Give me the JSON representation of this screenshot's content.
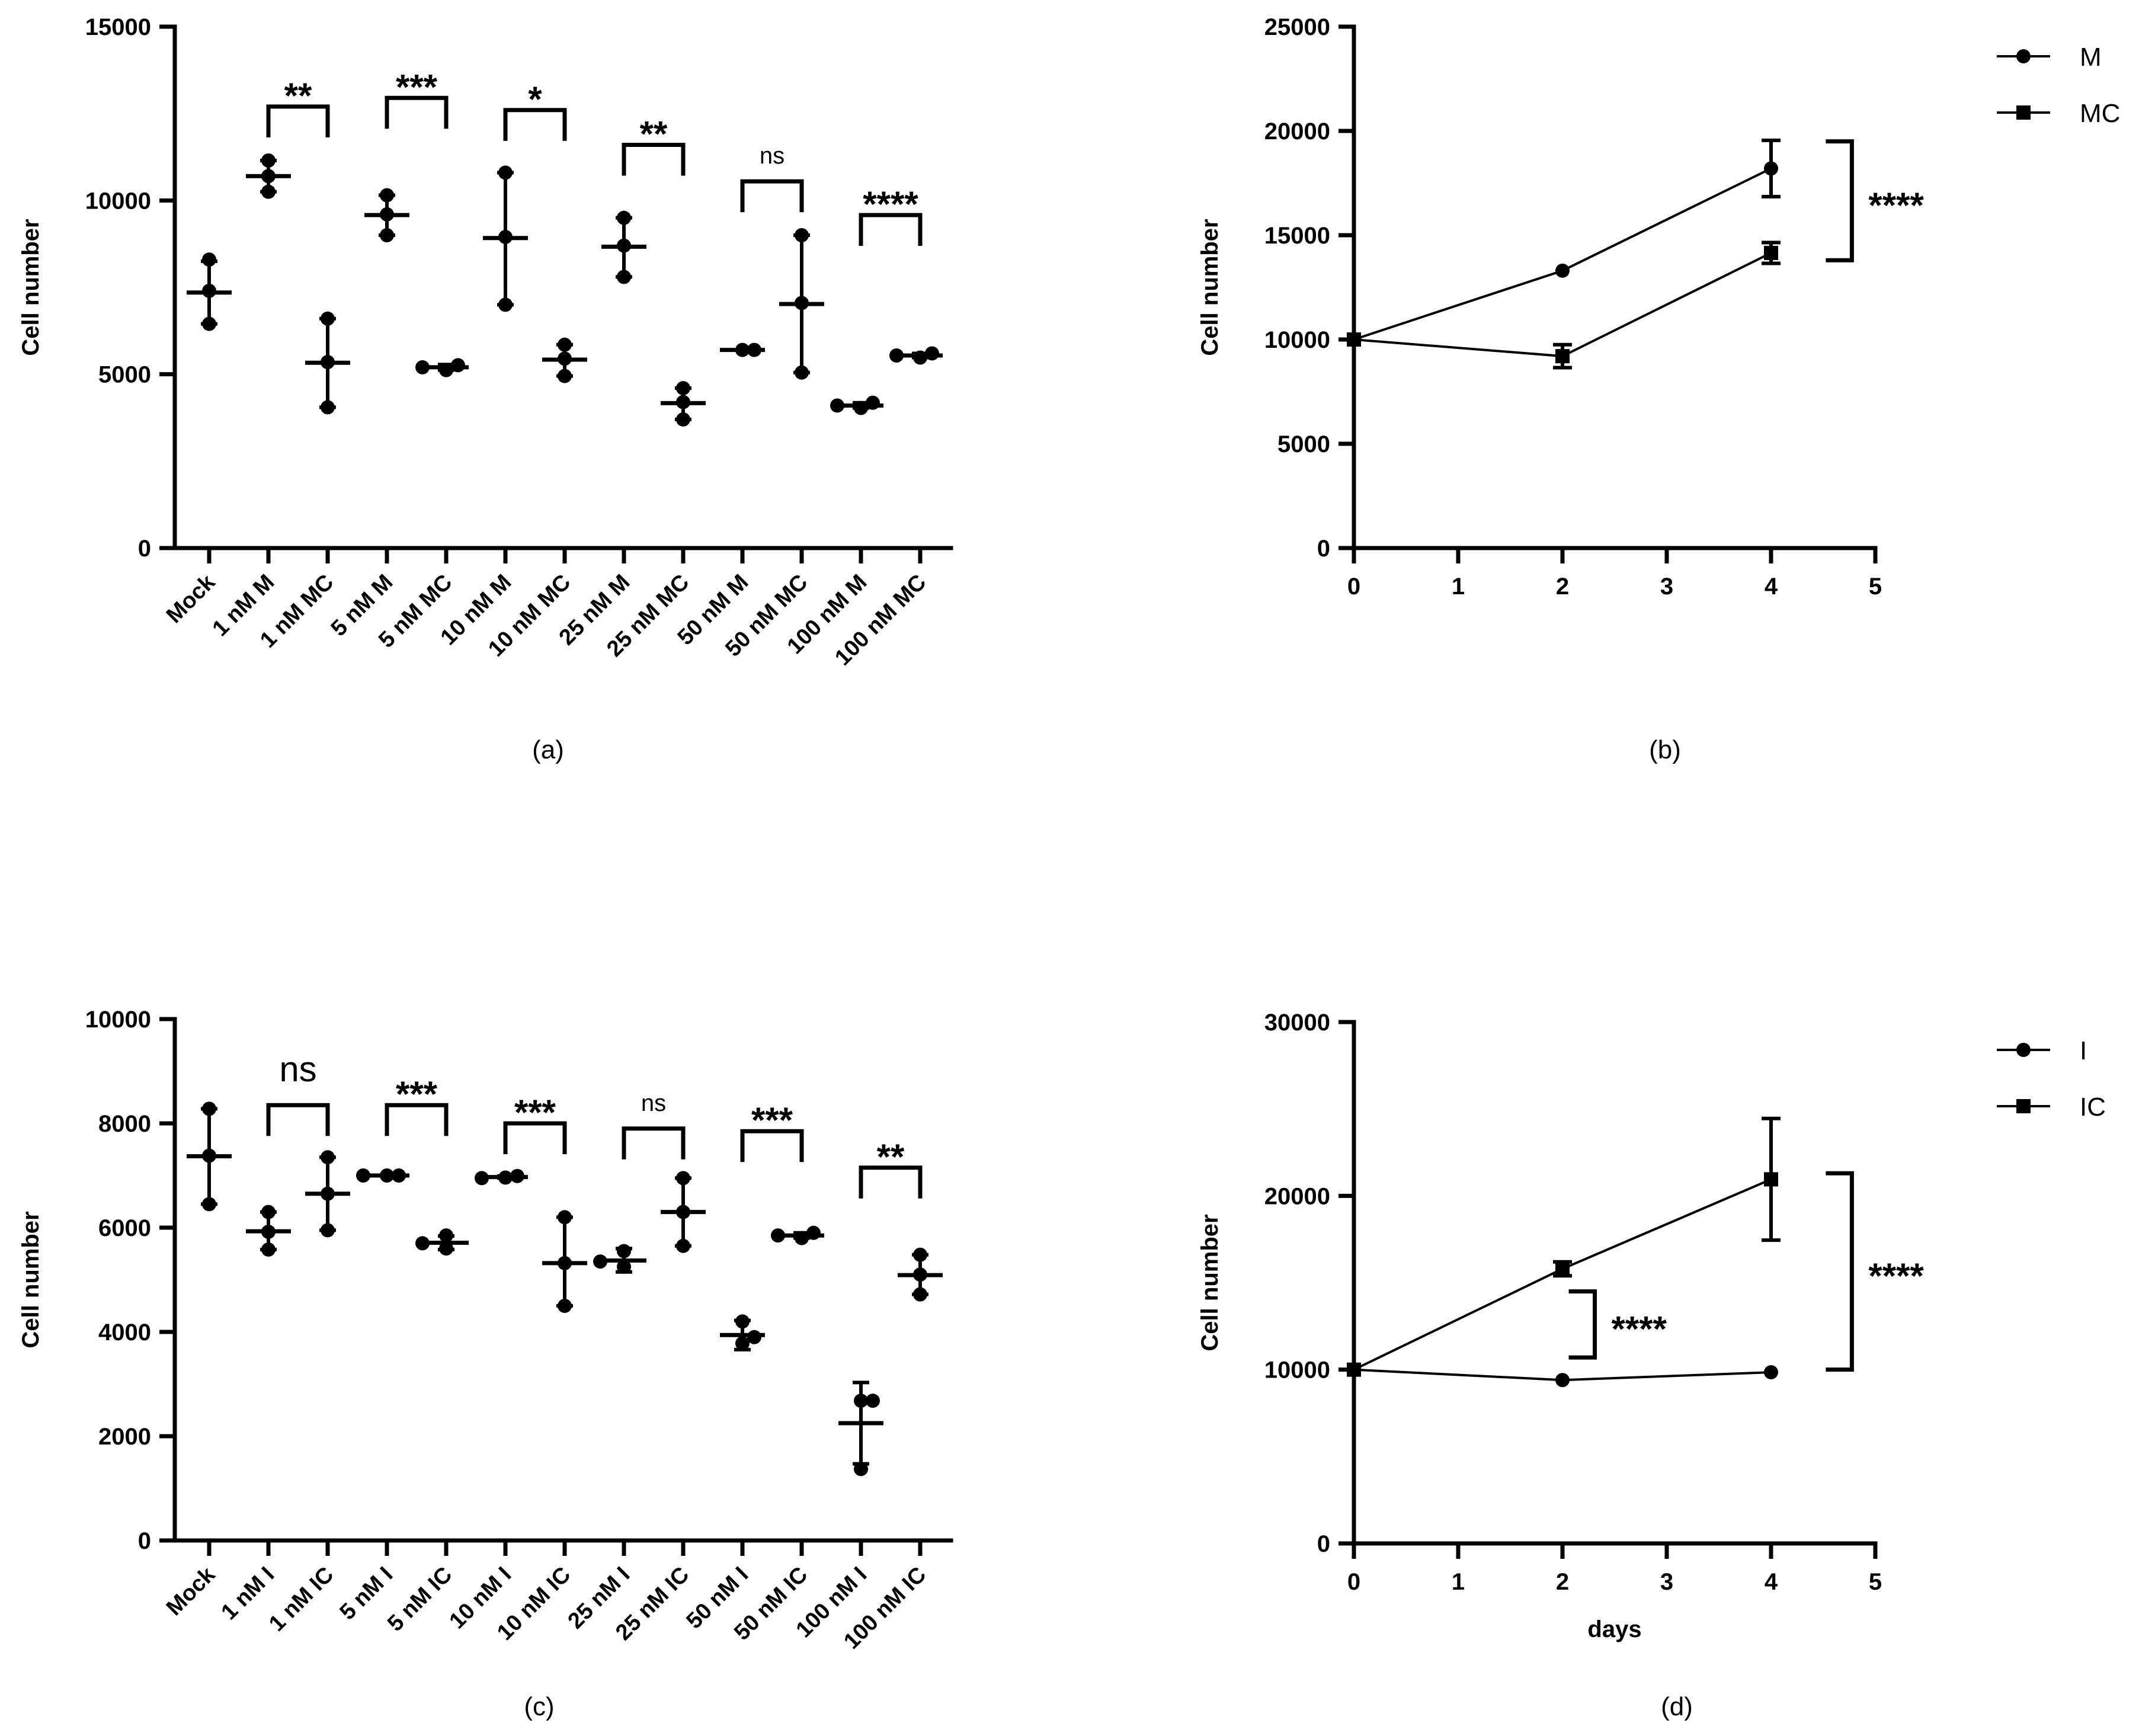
{
  "chart_data": [
    {
      "panel": "(a)",
      "type": "scatter",
      "ylabel": "Cell number",
      "ylim": [
        0,
        15000
      ],
      "yticks": [
        0,
        5000,
        10000,
        15000
      ],
      "categories": [
        "Mock",
        "1 nM M",
        "1 nM MC",
        "5 nM M",
        "5 nM MC",
        "10 nM M",
        "10 nM MC",
        "25 nM M",
        "25 nM MC",
        "50 nM M",
        "50 nM MC",
        "100 nM M",
        "100 nM MC"
      ],
      "groups": [
        {
          "points": [
            8300,
            7400,
            6450
          ],
          "mean": 7350,
          "err_low": 6450,
          "err_high": 8250
        },
        {
          "points": [
            11150,
            10700,
            10250
          ],
          "mean": 10700,
          "err_low": 10250,
          "err_high": 11150
        },
        {
          "points": [
            6600,
            5350,
            4050
          ],
          "mean": 5330,
          "err_low": 4050,
          "err_high": 6600
        },
        {
          "points": [
            10150,
            9600,
            9000
          ],
          "mean": 9580,
          "err_low": 9000,
          "err_high": 10150
        },
        {
          "points": [
            5120,
            5260,
            5200
          ],
          "mean": 5200,
          "err_low": 5120,
          "err_high": 5280
        },
        {
          "points": [
            10800,
            8950,
            7000
          ],
          "mean": 8920,
          "err_low": 7000,
          "err_high": 10800
        },
        {
          "points": [
            5850,
            5450,
            4950
          ],
          "mean": 5420,
          "err_low": 4950,
          "err_high": 5850
        },
        {
          "points": [
            9500,
            8700,
            7800
          ],
          "mean": 8670,
          "err_low": 7800,
          "err_high": 9500
        },
        {
          "points": [
            4600,
            4200,
            3700
          ],
          "mean": 4170,
          "err_low": 3700,
          "err_high": 4600
        },
        {
          "points": [
            5700,
            5700
          ],
          "mean": 5700,
          "err_low": 5700,
          "err_high": 5700
        },
        {
          "points": [
            9000,
            7050,
            5050
          ],
          "mean": 7020,
          "err_low": 5050,
          "err_high": 9000
        },
        {
          "points": [
            4030,
            4180,
            4100
          ],
          "mean": 4100,
          "err_low": 4030,
          "err_high": 4180
        },
        {
          "points": [
            5480,
            5600,
            5540
          ],
          "mean": 5540,
          "err_low": 5480,
          "err_high": 5600
        }
      ],
      "comparisons": [
        {
          "from": 1,
          "to": 2,
          "y": 12700,
          "label": "**",
          "style": "bold"
        },
        {
          "from": 3,
          "to": 4,
          "y": 12950,
          "label": "***",
          "style": "bold"
        },
        {
          "from": 5,
          "to": 6,
          "y": 12600,
          "label": "*",
          "style": "bold"
        },
        {
          "from": 7,
          "to": 8,
          "y": 11600,
          "label": "**",
          "style": "bold"
        },
        {
          "from": 9,
          "to": 10,
          "y": 10550,
          "label": "ns",
          "style": "ns"
        },
        {
          "from": 11,
          "to": 12,
          "y": 9580,
          "label": "****",
          "style": "bold"
        }
      ]
    },
    {
      "panel": "(b)",
      "type": "line",
      "ylabel": "Cell number",
      "xlabel": "",
      "ylim": [
        0,
        25000
      ],
      "yticks": [
        0,
        5000,
        10000,
        15000,
        20000,
        25000
      ],
      "xlim": [
        0,
        5
      ],
      "xticks": [
        0,
        1,
        2,
        3,
        4,
        5
      ],
      "series": [
        {
          "name": "M",
          "marker": "circle",
          "x": [
            0,
            2,
            4
          ],
          "y": [
            10000,
            13300,
            18200
          ],
          "err": [
            0,
            0,
            1350
          ]
        },
        {
          "name": "MC",
          "marker": "square",
          "x": [
            0,
            2,
            4
          ],
          "y": [
            10000,
            9200,
            14150
          ],
          "err": [
            0,
            550,
            500
          ]
        }
      ],
      "comparisons": [
        {
          "y_from": 13800,
          "y_to": 19500,
          "label": "****"
        }
      ]
    },
    {
      "panel": "(c)",
      "type": "scatter",
      "ylabel": "Cell number",
      "ylim": [
        0,
        10000
      ],
      "yticks": [
        0,
        2000,
        4000,
        6000,
        8000,
        10000
      ],
      "categories": [
        "Mock",
        "1 nM I",
        "1 nM IC",
        "5 nM I",
        "5 nM IC",
        "10 nM I",
        "10 nM IC",
        "25 nM I",
        "25 nM IC",
        "50 nM I",
        "50 nM IC",
        "100 nM I",
        "100 nM IC"
      ],
      "groups": [
        {
          "points": [
            8280,
            7380,
            6450
          ],
          "mean": 7370,
          "err_low": 6450,
          "err_high": 8280
        },
        {
          "points": [
            6300,
            5920,
            5580
          ],
          "mean": 5930,
          "err_low": 5580,
          "err_high": 6300
        },
        {
          "points": [
            7350,
            6650,
            5950
          ],
          "mean": 6650,
          "err_low": 5950,
          "err_high": 7350
        },
        {
          "points": [
            7000,
            7000,
            7000
          ],
          "mean": 7000,
          "err_low": 7000,
          "err_high": 7000
        },
        {
          "points": [
            5850,
            5600,
            5700
          ],
          "mean": 5710,
          "err_low": 5580,
          "err_high": 5840
        },
        {
          "points": [
            6960,
            6990,
            6950
          ],
          "mean": 6970,
          "err_low": 6950,
          "err_high": 6990
        },
        {
          "points": [
            6200,
            5320,
            4500
          ],
          "mean": 5320,
          "err_low": 4500,
          "err_high": 6200
        },
        {
          "points": [
            5550,
            5250,
            5350
          ],
          "mean": 5370,
          "err_low": 5150,
          "err_high": 5600
        },
        {
          "points": [
            6950,
            6300,
            5650
          ],
          "mean": 6300,
          "err_low": 5650,
          "err_high": 6950
        },
        {
          "points": [
            4200,
            3780,
            3900
          ],
          "mean": 3940,
          "err_low": 3660,
          "err_high": 4220
        },
        {
          "points": [
            5800,
            5900,
            5850
          ],
          "mean": 5850,
          "err_low": 5800,
          "err_high": 5900
        },
        {
          "points": [
            2680,
            2680,
            1370
          ],
          "mean": 2250,
          "err_low": 1470,
          "err_high": 3030
        },
        {
          "points": [
            5480,
            5100,
            4720
          ],
          "mean": 5090,
          "err_low": 4720,
          "err_high": 5480
        }
      ],
      "comparisons": [
        {
          "from": 1,
          "to": 2,
          "y": 8350,
          "label": "ns",
          "style": "ns-big"
        },
        {
          "from": 3,
          "to": 4,
          "y": 8350,
          "label": "***",
          "style": "bold"
        },
        {
          "from": 5,
          "to": 6,
          "y": 8000,
          "label": "***",
          "style": "bold"
        },
        {
          "from": 7,
          "to": 8,
          "y": 7900,
          "label": "ns",
          "style": "ns"
        },
        {
          "from": 9,
          "to": 10,
          "y": 7850,
          "label": "***",
          "style": "bold"
        },
        {
          "from": 11,
          "to": 12,
          "y": 7150,
          "label": "**",
          "style": "bold"
        }
      ]
    },
    {
      "panel": "(d)",
      "type": "line",
      "ylabel": "Cell number",
      "xlabel": "days",
      "ylim": [
        0,
        30000
      ],
      "yticks": [
        0,
        10000,
        20000,
        30000
      ],
      "xlim": [
        0,
        5
      ],
      "xticks": [
        0,
        1,
        2,
        3,
        4,
        5
      ],
      "series": [
        {
          "name": "I",
          "marker": "circle",
          "x": [
            0,
            2,
            4
          ],
          "y": [
            10000,
            9400,
            9850
          ],
          "err": [
            0,
            0,
            0
          ]
        },
        {
          "name": "IC",
          "marker": "square",
          "x": [
            0,
            2,
            4
          ],
          "y": [
            10000,
            15800,
            20950
          ],
          "err": [
            0,
            400,
            3500
          ]
        }
      ],
      "comparisons": [
        {
          "y_from": 10000,
          "y_to": 21300,
          "label": "****",
          "at": "outer"
        },
        {
          "y_from": 10700,
          "y_to": 14500,
          "label": "****",
          "at": "inner"
        }
      ]
    }
  ]
}
